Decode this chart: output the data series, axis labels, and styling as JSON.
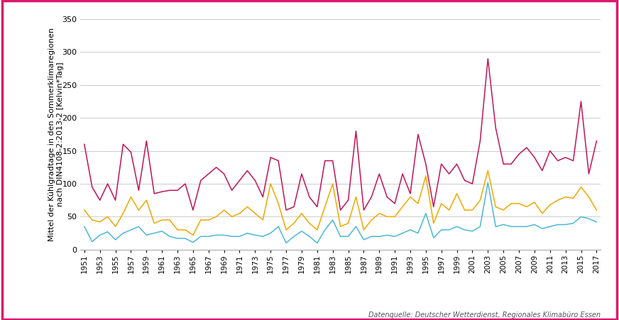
{
  "years": [
    1951,
    1952,
    1953,
    1954,
    1955,
    1956,
    1957,
    1958,
    1959,
    1960,
    1961,
    1962,
    1963,
    1964,
    1965,
    1966,
    1967,
    1968,
    1969,
    1970,
    1971,
    1972,
    1973,
    1974,
    1975,
    1976,
    1977,
    1978,
    1979,
    1980,
    1981,
    1982,
    1983,
    1984,
    1985,
    1986,
    1987,
    1988,
    1989,
    1990,
    1991,
    1992,
    1993,
    1994,
    1995,
    1996,
    1997,
    1998,
    1999,
    2000,
    2001,
    2002,
    2003,
    2004,
    2005,
    2006,
    2007,
    2008,
    2009,
    2010,
    2011,
    2012,
    2013,
    2014,
    2015,
    2016,
    2017
  ],
  "region_A": [
    35,
    12,
    22,
    27,
    15,
    25,
    30,
    35,
    22,
    25,
    28,
    20,
    17,
    17,
    11,
    20,
    20,
    22,
    22,
    20,
    20,
    25,
    22,
    20,
    25,
    35,
    10,
    20,
    28,
    20,
    10,
    30,
    45,
    20,
    20,
    35,
    15,
    20,
    20,
    22,
    20,
    25,
    30,
    25,
    55,
    18,
    30,
    30,
    35,
    30,
    28,
    35,
    102,
    35,
    38,
    35,
    35,
    35,
    38,
    32,
    35,
    38,
    38,
    40,
    50,
    47,
    42
  ],
  "region_B": [
    60,
    45,
    42,
    50,
    35,
    55,
    80,
    60,
    75,
    40,
    45,
    45,
    30,
    30,
    22,
    45,
    45,
    50,
    60,
    50,
    55,
    65,
    55,
    45,
    100,
    70,
    30,
    40,
    55,
    40,
    30,
    65,
    100,
    35,
    40,
    80,
    30,
    45,
    55,
    50,
    50,
    65,
    80,
    70,
    112,
    40,
    70,
    60,
    85,
    60,
    60,
    75,
    120,
    65,
    60,
    70,
    70,
    65,
    72,
    55,
    68,
    75,
    80,
    78,
    95,
    80,
    60
  ],
  "region_C": [
    160,
    95,
    75,
    100,
    75,
    160,
    148,
    90,
    165,
    85,
    88,
    90,
    90,
    100,
    60,
    105,
    115,
    125,
    115,
    90,
    105,
    120,
    105,
    80,
    140,
    135,
    60,
    65,
    115,
    80,
    65,
    135,
    135,
    60,
    75,
    180,
    60,
    80,
    115,
    80,
    70,
    115,
    85,
    175,
    130,
    65,
    130,
    115,
    130,
    105,
    100,
    165,
    290,
    185,
    130,
    130,
    145,
    155,
    140,
    120,
    150,
    135,
    140,
    135,
    225,
    115,
    165
  ],
  "color_A": "#4cb8d6",
  "color_B": "#f0a800",
  "color_C": "#c0145a",
  "ylabel": "Mittel der Kühlgradtage in den Sommerklimaregionen\nnach DIN4108-2:2013-2 [Kelvin*Tag]",
  "ylim": [
    0,
    350
  ],
  "yticks": [
    0,
    50,
    100,
    150,
    200,
    250,
    300,
    350
  ],
  "source_text": "Datenquelle: Deutscher Wetterdienst, Regionales Klimabüro Essen",
  "border_color": "#d91a6e",
  "background_color": "#ffffff",
  "grid_color": "#cccccc"
}
